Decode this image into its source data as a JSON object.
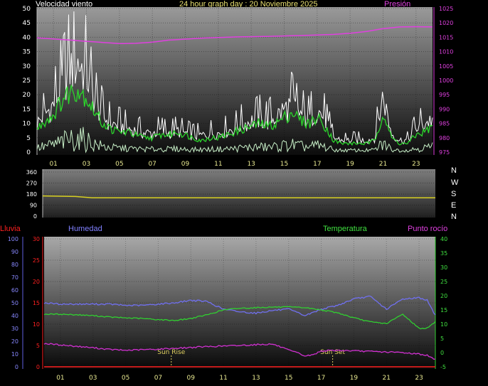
{
  "header": {
    "wind_title": "Velocidad viento",
    "graph_title": "24 hour graph day : 20 Noviembre 2025",
    "pressure_title": "Presión"
  },
  "labels": {
    "rain": "Lluvia",
    "humidity": "Humedad",
    "temperature": "Temperatura",
    "dew_point": "Punto rocío",
    "sun_rise": "Sun Rise",
    "sun_set": "Sun Set"
  },
  "compass": [
    "N",
    "W",
    "S",
    "E",
    "N"
  ],
  "colors": {
    "wind_gust": "#ffffff",
    "wind_avg": "#2bd62b",
    "wind_low": "#c8f0c8",
    "pressure": "#e040e0",
    "direction": "#d8d020",
    "rain": "#ff2020",
    "humidity": "#7070f0",
    "temperature": "#30d030",
    "dew_point": "#d030d0",
    "sun_marker": "#e0d060",
    "hour_tick": "#e8e890"
  },
  "chart_data": [
    {
      "type": "line",
      "title": "Velocidad viento",
      "x_tick_labels": [
        "01",
        "03",
        "05",
        "07",
        "09",
        "11",
        "13",
        "15",
        "17",
        "19",
        "21",
        "23"
      ],
      "xlim": [
        0,
        24
      ],
      "ylim_left": [
        0,
        50
      ],
      "left_ticks": [
        "0",
        "5",
        "10",
        "15",
        "20",
        "25",
        "30",
        "35",
        "40",
        "45",
        "50"
      ],
      "ylim_right": [
        975,
        1025
      ],
      "right_ticks": [
        "975",
        "980",
        "985",
        "990",
        "995",
        "1000",
        "1005",
        "1010",
        "1015",
        "1020",
        "1025"
      ],
      "series": [
        {
          "name": "Velocidad viento",
          "axis": "left",
          "x": [
            0,
            0.5,
            1,
            1.5,
            2,
            2.5,
            3,
            3.5,
            4,
            4.5,
            5,
            5.5,
            6,
            6.5,
            7,
            7.5,
            8,
            8.5,
            9,
            9.5,
            10,
            10.5,
            11,
            11.5,
            12,
            12.5,
            13,
            13.5,
            14,
            14.5,
            15,
            15.5,
            16,
            16.5,
            17,
            17.5,
            18,
            18.5,
            19,
            19.5,
            20,
            20.5,
            21,
            21.5,
            22,
            22.5,
            23,
            23.5,
            24
          ],
          "values": [
            12,
            16,
            20,
            28,
            35,
            38,
            33,
            22,
            15,
            12,
            11,
            10,
            9,
            8,
            8,
            9,
            8,
            9,
            8,
            7,
            7,
            8,
            8,
            9,
            10,
            12,
            13,
            14,
            13,
            15,
            18,
            20,
            16,
            14,
            18,
            14,
            6,
            5,
            5,
            5,
            5,
            6,
            24,
            8,
            5,
            5,
            10,
            12,
            14
          ]
        },
        {
          "name": "wind average",
          "axis": "left",
          "x": [
            0,
            0.5,
            1,
            1.5,
            2,
            2.5,
            3,
            3.5,
            4,
            4.5,
            5,
            5.5,
            6,
            6.5,
            7,
            7.5,
            8,
            8.5,
            9,
            9.5,
            10,
            10.5,
            11,
            11.5,
            12,
            12.5,
            13,
            13.5,
            14,
            14.5,
            15,
            15.5,
            16,
            16.5,
            17,
            17.5,
            18,
            18.5,
            19,
            19.5,
            20,
            20.5,
            21,
            21.5,
            22,
            22.5,
            23,
            23.5,
            24
          ],
          "values": [
            8,
            11,
            13,
            18,
            21,
            22,
            19,
            14,
            10,
            8,
            7,
            7,
            6,
            5,
            5,
            6,
            6,
            7,
            6,
            5,
            4,
            5,
            5,
            6,
            7,
            8,
            9,
            10,
            9,
            10,
            12,
            14,
            11,
            10,
            12,
            9,
            4,
            3,
            3,
            3,
            3,
            4,
            14,
            5,
            3,
            3,
            6,
            7,
            9
          ]
        },
        {
          "name": "Presión",
          "axis": "right",
          "x": [
            0,
            2,
            4,
            5,
            6,
            7,
            8,
            10,
            12,
            14,
            16,
            18,
            19,
            20,
            21,
            22,
            23,
            24
          ],
          "values": [
            1014.8,
            1014.0,
            1013.2,
            1012.8,
            1012.9,
            1013.3,
            1014.0,
            1014.7,
            1015.1,
            1015.3,
            1015.6,
            1016.0,
            1016.4,
            1017.0,
            1018.0,
            1018.6,
            1018.7,
            1018.6
          ]
        }
      ]
    },
    {
      "type": "line",
      "title": "",
      "x_tick_labels": [],
      "xlim": [
        0,
        24
      ],
      "ylim": [
        0,
        360
      ],
      "left_ticks": [
        "0",
        "90",
        "180",
        "270",
        "360"
      ],
      "series": [
        {
          "name": "direction",
          "x": [
            0,
            2,
            3,
            24
          ],
          "values": [
            165,
            160,
            150,
            150
          ]
        }
      ]
    },
    {
      "type": "line",
      "title": "",
      "x_tick_labels": [
        "01",
        "03",
        "05",
        "07",
        "09",
        "11",
        "13",
        "15",
        "17",
        "19",
        "21",
        "23"
      ],
      "xlim": [
        0,
        24
      ],
      "humidity_ticks": [
        "0",
        "10",
        "20",
        "30",
        "40",
        "50",
        "60",
        "70",
        "80",
        "90",
        "100"
      ],
      "ylim_humidity": [
        0,
        100
      ],
      "rain_ticks": [
        "0",
        "5",
        "10",
        "15",
        "20",
        "25",
        "30"
      ],
      "ylim_rain": [
        0,
        30
      ],
      "temp_ticks": [
        "-5",
        "0",
        "5",
        "10",
        "15",
        "20",
        "25",
        "30",
        "35",
        "40"
      ],
      "ylim_temp": [
        -5,
        40
      ],
      "sun_rise_hour": 7.8,
      "sun_set_hour": 17.7,
      "series": [
        {
          "name": "Lluvia",
          "axis": "rain",
          "x": [
            0,
            24
          ],
          "values": [
            0,
            0
          ]
        },
        {
          "name": "Humedad",
          "axis": "humidity",
          "x": [
            0,
            1,
            2,
            3,
            4,
            5,
            6,
            7,
            8,
            9,
            10,
            11,
            12,
            13,
            14,
            15,
            16,
            17,
            18,
            19,
            20,
            21,
            22,
            23,
            23.5,
            24
          ],
          "values": [
            50,
            49,
            49,
            49,
            49,
            48,
            48,
            49,
            50,
            52,
            51,
            45,
            43,
            42,
            44,
            45,
            40,
            45,
            48,
            53,
            55,
            45,
            53,
            54,
            52,
            40
          ]
        },
        {
          "name": "Temperatura",
          "axis": "temp",
          "x": [
            0,
            1,
            2,
            3,
            4,
            5,
            6,
            7,
            8,
            9,
            10,
            11,
            12,
            13,
            14,
            15,
            16,
            17,
            18,
            19,
            20,
            21,
            22,
            23,
            23.5,
            24
          ],
          "values": [
            13.5,
            13.5,
            13.3,
            13.0,
            12.5,
            12.2,
            12.0,
            11.6,
            11.3,
            12.0,
            13.3,
            15.0,
            15.6,
            15.8,
            16.0,
            16.0,
            15.8,
            15.0,
            14.0,
            12.2,
            10.8,
            10.2,
            13.5,
            8.5,
            8.6,
            10.8
          ]
        },
        {
          "name": "Punto rocío",
          "axis": "temp",
          "x": [
            0,
            1,
            2,
            3,
            4,
            5,
            6,
            7,
            8,
            9,
            10,
            11,
            12,
            13,
            14,
            14.5,
            15,
            15.5,
            16,
            16.5,
            17,
            18,
            19,
            20,
            21,
            22,
            23,
            23.5,
            24
          ],
          "values": [
            3.2,
            2.7,
            2.2,
            1.7,
            1.1,
            0.8,
            1.0,
            1.2,
            1.5,
            1.8,
            2.1,
            2.3,
            2.5,
            2.8,
            3.0,
            2.0,
            0.8,
            0.0,
            -1.2,
            -0.8,
            0.6,
            0.8,
            0.6,
            0.4,
            0.2,
            0.0,
            -0.5,
            -1.0,
            -2.5
          ]
        }
      ]
    }
  ]
}
